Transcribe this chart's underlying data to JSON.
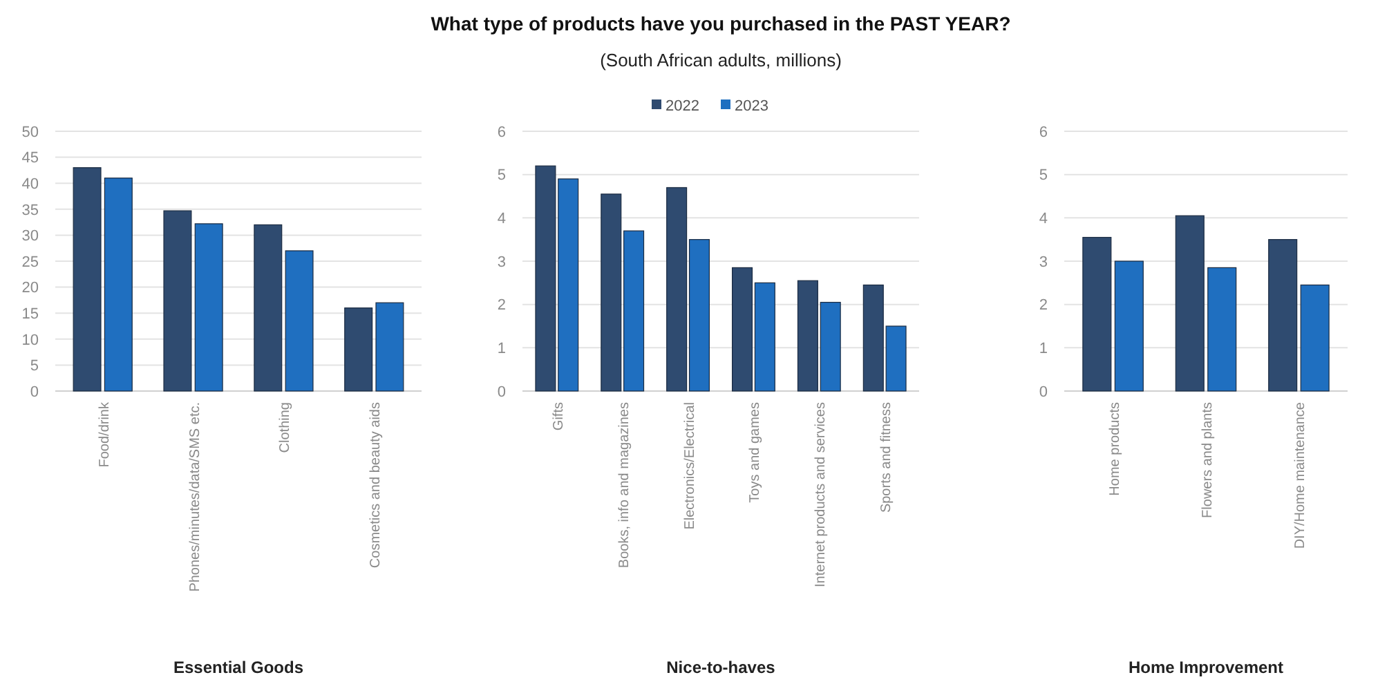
{
  "chart_data": [
    {
      "type": "bar",
      "xlabel": "Essential Goods",
      "categories": [
        "Food/drink",
        "Phones/minutes/data/SMS etc.",
        "Clothing",
        "Cosmetics and beauty aids"
      ],
      "series": [
        {
          "color": "#2f4b70",
          "values": [
            43,
            34.7,
            32,
            16
          ]
        },
        {
          "color": "#1f6fc0",
          "values": [
            41,
            32.2,
            27,
            17
          ]
        }
      ],
      "ylim": [
        0,
        50
      ],
      "yticks": [
        0,
        5,
        10,
        15,
        20,
        25,
        30,
        35,
        40,
        45,
        50
      ],
      "grid": "y"
    },
    {
      "type": "bar",
      "title": "What type of products have you purchased in the PAST YEAR?",
      "subtitle": "(South African adults, millions)",
      "xlabel": "Nice-to-haves",
      "categories": [
        "Gifts",
        "Books, info and magazines",
        "Electronics/Electrical",
        "Toys and games",
        "Internet products and services",
        "Sports and fitness"
      ],
      "series": [
        {
          "name": "2022",
          "color": "#2f4b70",
          "values": [
            5.2,
            4.55,
            4.7,
            2.85,
            2.55,
            2.45
          ]
        },
        {
          "name": "2023",
          "color": "#1f6fc0",
          "values": [
            4.9,
            3.7,
            3.5,
            2.5,
            2.05,
            1.5
          ]
        }
      ],
      "ylim": [
        0,
        6
      ],
      "yticks": [
        0,
        1,
        2,
        3,
        4,
        5,
        6
      ],
      "grid": "y",
      "legend": "top"
    },
    {
      "type": "bar",
      "xlabel": "Home Improvement",
      "categories": [
        "Home products",
        "Flowers and plants",
        "DIY/Home maintenance"
      ],
      "series": [
        {
          "color": "#2f4b70",
          "values": [
            3.55,
            4.05,
            3.5
          ]
        },
        {
          "color": "#1f6fc0",
          "values": [
            3.0,
            2.85,
            2.45
          ]
        }
      ],
      "ylim": [
        0,
        6
      ],
      "yticks": [
        0,
        1,
        2,
        3,
        4,
        5,
        6
      ],
      "grid": "y"
    }
  ]
}
